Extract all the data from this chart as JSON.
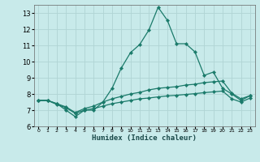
{
  "bg_color": "#c8eaea",
  "grid_color": "#b0d4d4",
  "line_color": "#1a7a6a",
  "xlabel": "Humidex (Indice chaleur)",
  "ylim": [
    6,
    13.5
  ],
  "xlim": [
    -0.5,
    23.5
  ],
  "yticks": [
    6,
    7,
    8,
    9,
    10,
    11,
    12,
    13
  ],
  "xticks": [
    0,
    1,
    2,
    3,
    4,
    5,
    6,
    7,
    8,
    9,
    10,
    11,
    12,
    13,
    14,
    15,
    16,
    17,
    18,
    19,
    20,
    21,
    22,
    23
  ],
  "line1_x": [
    0,
    1,
    2,
    3,
    4,
    5,
    6,
    7,
    8,
    9,
    10,
    11,
    12,
    13,
    14,
    15,
    16,
    17,
    18,
    19,
    20,
    21,
    22,
    23
  ],
  "line1_y": [
    7.6,
    7.6,
    7.4,
    7.0,
    6.6,
    7.0,
    7.0,
    7.5,
    8.35,
    9.6,
    10.55,
    11.05,
    11.95,
    13.35,
    12.55,
    11.1,
    11.1,
    10.6,
    9.15,
    9.35,
    8.35,
    8.0,
    7.6,
    7.9
  ],
  "line2_x": [
    0,
    1,
    2,
    3,
    4,
    5,
    6,
    7,
    8,
    9,
    10,
    11,
    12,
    13,
    14,
    15,
    16,
    17,
    18,
    19,
    20,
    21,
    22,
    23
  ],
  "line2_y": [
    7.6,
    7.6,
    7.4,
    7.2,
    6.85,
    7.1,
    7.25,
    7.5,
    7.7,
    7.85,
    8.0,
    8.1,
    8.25,
    8.35,
    8.4,
    8.45,
    8.55,
    8.6,
    8.7,
    8.75,
    8.8,
    8.05,
    7.7,
    7.9
  ],
  "line3_x": [
    0,
    1,
    2,
    3,
    4,
    5,
    6,
    7,
    8,
    9,
    10,
    11,
    12,
    13,
    14,
    15,
    16,
    17,
    18,
    19,
    20,
    21,
    22,
    23
  ],
  "line3_y": [
    7.6,
    7.6,
    7.35,
    7.15,
    6.8,
    7.0,
    7.1,
    7.25,
    7.4,
    7.5,
    7.6,
    7.7,
    7.75,
    7.82,
    7.88,
    7.92,
    7.97,
    8.02,
    8.08,
    8.13,
    8.18,
    7.7,
    7.5,
    7.75
  ]
}
